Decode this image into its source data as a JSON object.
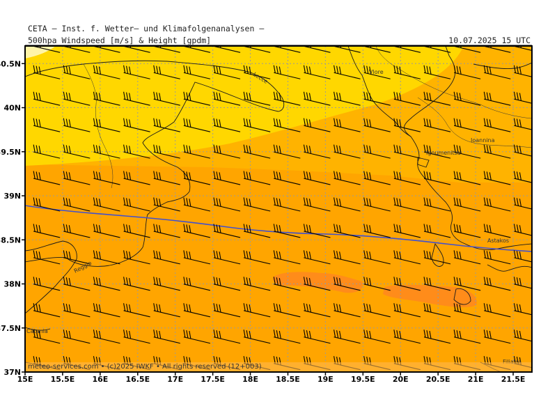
{
  "header": {
    "title_line1": "CETA — Inst. f. Wetter— und Klimafolgenanalysen —",
    "title_line2": "500hpa_Windspeed [m/s] & Height [gpdm]",
    "datetime": "10.07.2025 15 UTC"
  },
  "footer": {
    "credit": "meteo-services.com • (c)2025 IWKF • All rights reserved (12+003)"
  },
  "map": {
    "lon_range": [
      15,
      21.75
    ],
    "lat_range": [
      37,
      40.7
    ],
    "x_ticks": [
      "15E",
      "15.5E",
      "16E",
      "16.5E",
      "17E",
      "17.5E",
      "18E",
      "18.5E",
      "19E",
      "19.5E",
      "20E",
      "20.5E",
      "21E",
      "21.5E"
    ],
    "y_ticks": [
      "40.5N",
      "40N",
      "39.5N",
      "39N",
      "38.5N",
      "38N",
      "37.5N",
      "37N"
    ],
    "wind_barb_grid_deg": 0.4,
    "colors": {
      "band_light": "#fff4a8",
      "band_yellow": "#ffd700",
      "band_orange_light": "#ffb300",
      "band_orange": "#ffa500",
      "band_dark_orange": "#ff8c1a",
      "isoline": "#4050d0",
      "coast": "#1a1a1a",
      "grid": "#9a9a9a"
    },
    "cities": [
      {
        "name": "Lecce"
      },
      {
        "name": "Vlore"
      },
      {
        "name": "Igoumenitsa"
      },
      {
        "name": "Ioannina"
      },
      {
        "name": "Astakos"
      },
      {
        "name": "Reggio"
      },
      {
        "name": "Catania"
      },
      {
        "name": "Filiatra"
      }
    ]
  }
}
